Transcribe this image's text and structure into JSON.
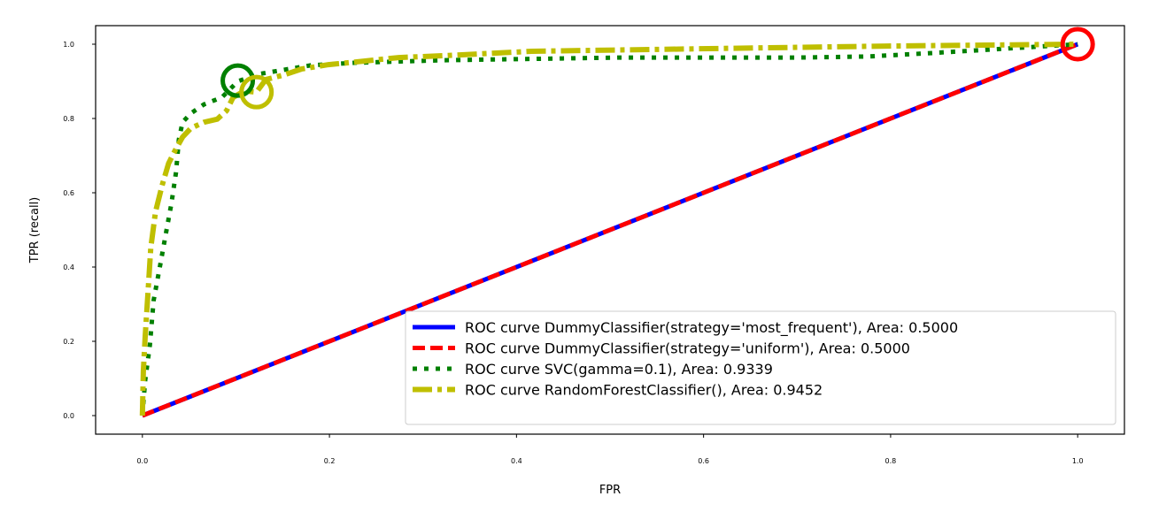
{
  "chart_data": {
    "type": "line",
    "title": "",
    "xlabel": "FPR",
    "ylabel": "TPR (recall)",
    "xlim": [
      -0.05,
      1.05
    ],
    "ylim": [
      -0.05,
      1.05
    ],
    "xticks": [
      "0.0",
      "0.2",
      "0.4",
      "0.6",
      "0.8",
      "1.0"
    ],
    "yticks": [
      "0.0",
      "0.2",
      "0.4",
      "0.6",
      "0.8",
      "1.0"
    ],
    "grid": false,
    "legend_position": "lower-right",
    "series": [
      {
        "name": "ROC curve DummyClassifier(strategy='most_frequent'), Area: 0.5000",
        "color": "#0000ff",
        "style": "solid",
        "x": [
          0,
          1
        ],
        "y": [
          0,
          1
        ],
        "marker": {
          "x": 1.0,
          "y": 1.0
        }
      },
      {
        "name": "ROC curve DummyClassifier(strategy='uniform'), Area: 0.5000",
        "color": "#ff0000",
        "style": "dashed",
        "x": [
          0,
          1
        ],
        "y": [
          0,
          1
        ],
        "marker": {
          "x": 1.0,
          "y": 1.0
        }
      },
      {
        "name": "ROC curve SVC(gamma=0.1), Area: 0.9339",
        "color": "#008000",
        "style": "dotted",
        "x": [
          0,
          0.003,
          0.008,
          0.012,
          0.019,
          0.025,
          0.031,
          0.036,
          0.039,
          0.043,
          0.052,
          0.066,
          0.085,
          0.102,
          0.123,
          0.151,
          0.18,
          0.227,
          0.322,
          0.511,
          0.7,
          0.776,
          0.842,
          0.89,
          1.0
        ],
        "y": [
          0,
          0.095,
          0.19,
          0.31,
          0.405,
          0.488,
          0.571,
          0.655,
          0.743,
          0.79,
          0.814,
          0.838,
          0.857,
          0.9,
          0.919,
          0.931,
          0.943,
          0.95,
          0.957,
          0.964,
          0.964,
          0.967,
          0.976,
          0.983,
          1.0
        ],
        "marker": {
          "x": 0.102,
          "y": 0.902
        }
      },
      {
        "name": "ROC curve RandomForestClassifier(), Area: 0.9452",
        "color": "#bfbf00",
        "style": "dashdot",
        "x": [
          0,
          0.001,
          0.003,
          0.006,
          0.009,
          0.014,
          0.021,
          0.028,
          0.035,
          0.043,
          0.052,
          0.066,
          0.08,
          0.09,
          0.097,
          0.109,
          0.122,
          0.132,
          0.151,
          0.17,
          0.199,
          0.227,
          0.274,
          0.322,
          0.416,
          0.605,
          0.795,
          1.0
        ],
        "y": [
          0,
          0.119,
          0.214,
          0.333,
          0.452,
          0.548,
          0.619,
          0.679,
          0.714,
          0.75,
          0.774,
          0.79,
          0.798,
          0.821,
          0.857,
          0.874,
          0.871,
          0.905,
          0.917,
          0.933,
          0.945,
          0.952,
          0.964,
          0.969,
          0.981,
          0.988,
          0.995,
          1.0
        ],
        "marker": {
          "x": 0.122,
          "y": 0.871
        }
      }
    ]
  }
}
